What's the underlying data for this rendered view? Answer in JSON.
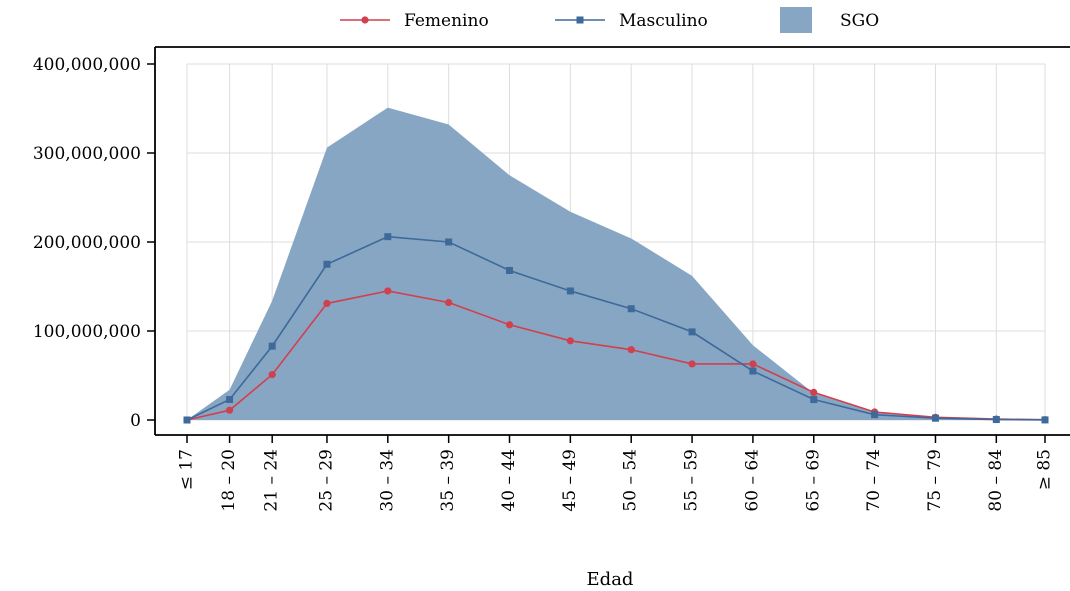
{
  "chart_data": {
    "type": "line",
    "categories": [
      "≤ 17",
      "18 – 20",
      "21 – 24",
      "25 – 29",
      "30 – 34",
      "35 – 39",
      "40 – 44",
      "45 – 49",
      "50 – 54",
      "55 – 59",
      "60 – 64",
      "65 – 69",
      "70 – 74",
      "75 – 79",
      "80 – 84",
      "≥ 85"
    ],
    "x_positions": [
      15.5,
      19,
      22.5,
      27,
      32,
      37,
      42,
      47,
      52,
      57,
      62,
      67,
      72,
      77,
      82,
      86
    ],
    "series": [
      {
        "name": "Femenino",
        "type": "line",
        "marker": "circle",
        "color": "#d0404e",
        "values": [
          0,
          11000000,
          51000000,
          131000000,
          145000000,
          132000000,
          107000000,
          89000000,
          79000000,
          63000000,
          63000000,
          31000000,
          9000000,
          3000000,
          1000000,
          300000
        ]
      },
      {
        "name": "Masculino",
        "type": "line",
        "marker": "square",
        "color": "#3d6a9a",
        "values": [
          0,
          23000000,
          83000000,
          175000000,
          206000000,
          200000000,
          168000000,
          145000000,
          125000000,
          99000000,
          55000000,
          23000000,
          6000000,
          2000000,
          500000,
          100000
        ]
      },
      {
        "name": "SGO",
        "type": "area",
        "color": "#87a6c4",
        "values": [
          0,
          34000000,
          134000000,
          306000000,
          351000000,
          332000000,
          275000000,
          234000000,
          204000000,
          162000000,
          84000000,
          30000000,
          9000000,
          3000000,
          1000000,
          300000
        ]
      }
    ],
    "yticks": [
      "0",
      "100,000,000",
      "200,000,000",
      "300,000,000",
      "400,000,000"
    ],
    "ytick_values": [
      0,
      100000000,
      200000000,
      300000000,
      400000000
    ],
    "ylim": [
      0,
      400000000
    ],
    "xlabel": "Edad",
    "ylabel": "",
    "grid": true,
    "legend_position": "top"
  }
}
